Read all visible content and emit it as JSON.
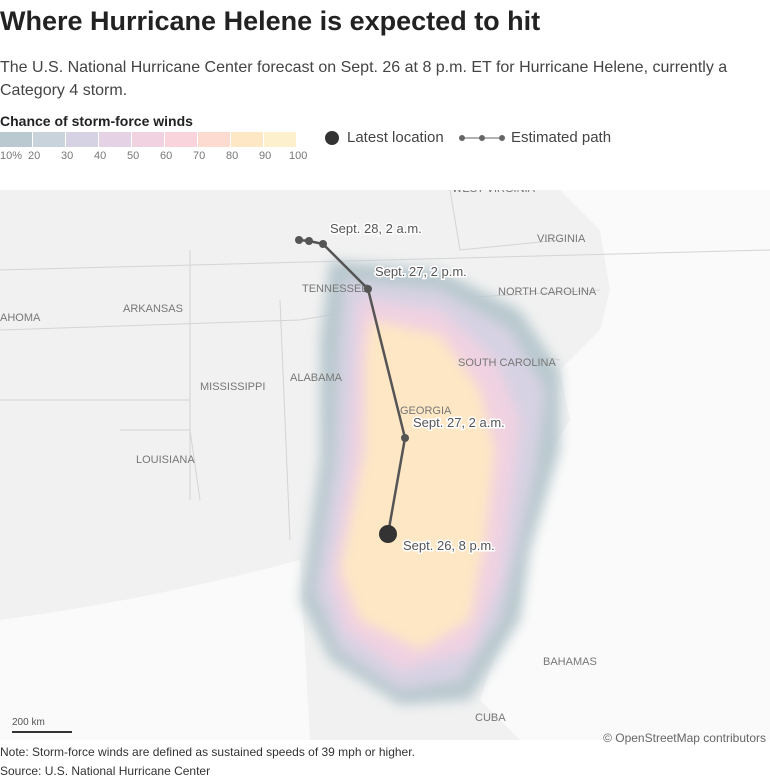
{
  "title": "Where Hurricane Helene is expected to hit",
  "subtitle": "The U.S. National Hurricane Center forecast on Sept. 26 at 8 p.m. ET for Hurricane Helene, currently a Category 4 storm.",
  "legend": {
    "title": "Chance of storm-force winds",
    "colors": [
      "#b9c9cf",
      "#c9d3dc",
      "#d7d2e3",
      "#e5d3e5",
      "#f0d2e1",
      "#fad4dc",
      "#fddbd0",
      "#fde7c4",
      "#fdf0cc"
    ],
    "ticks": [
      "10%",
      "20",
      "30",
      "40",
      "50",
      "60",
      "70",
      "80",
      "90",
      "100"
    ],
    "latest_label": "Latest location",
    "path_label": "Estimated path"
  },
  "map": {
    "places": [
      "WEST VIRGINIA",
      "VIRGINIA",
      "NORTH CAROLINA",
      "SOUTH CAROLINA",
      "TENNESSEE",
      "ARKANSAS",
      "AHOMA",
      "MISSISSIPPI",
      "ALABAMA",
      "GEORGIA",
      "LOUISIANA",
      "BAHAMAS",
      "CUBA"
    ],
    "path_labels": [
      "Sept. 28, 2 a.m.",
      "Sept. 27, 2 p.m.",
      "Sept. 27, 2 a.m.",
      "Sept. 26, 8 p.m."
    ],
    "scale": "200 km",
    "attribution": "© OpenStreetMap contributors"
  },
  "note": "Note: Storm-force winds are defined as sustained speeds of 39 mph or higher.",
  "source": "Source: U.S. National Hurricane Center"
}
